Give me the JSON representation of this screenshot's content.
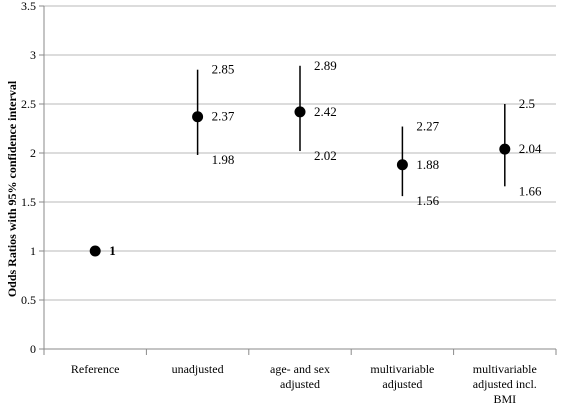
{
  "chart_data": {
    "type": "scatter",
    "ylabel": "Odds Ratios with 95% confidence interval",
    "xlabel": "",
    "ylim": [
      0,
      3.5
    ],
    "yticks": [
      "0",
      "0.5",
      "1",
      "1.5",
      "2",
      "2.5",
      "3",
      "3.5"
    ],
    "ytick_values": [
      0,
      0.5,
      1,
      1.5,
      2,
      2.5,
      3,
      3.5
    ],
    "grid": true,
    "categories": [
      [
        "Reference"
      ],
      [
        "unadjusted"
      ],
      [
        "age- and sex",
        "adjusted"
      ],
      [
        "multivariable",
        "adjusted"
      ],
      [
        "multivariable",
        "adjusted incl.",
        "BMI"
      ]
    ],
    "points": [
      {
        "estimate": 1,
        "estimate_label": "1",
        "bold": true
      },
      {
        "estimate": 2.37,
        "lower": 1.98,
        "upper": 2.85,
        "estimate_label": "2.37",
        "lower_label": "1.98",
        "upper_label": "2.85"
      },
      {
        "estimate": 2.42,
        "lower": 2.02,
        "upper": 2.89,
        "estimate_label": "2.42",
        "lower_label": "2.02",
        "upper_label": "2.89"
      },
      {
        "estimate": 1.88,
        "lower": 1.56,
        "upper": 2.27,
        "estimate_label": "1.88",
        "lower_label": "1.56",
        "upper_label": "2.27"
      },
      {
        "estimate": 2.04,
        "lower": 1.66,
        "upper": 2.5,
        "estimate_label": "2.04",
        "lower_label": "1.66",
        "upper_label": "2.5"
      }
    ]
  }
}
